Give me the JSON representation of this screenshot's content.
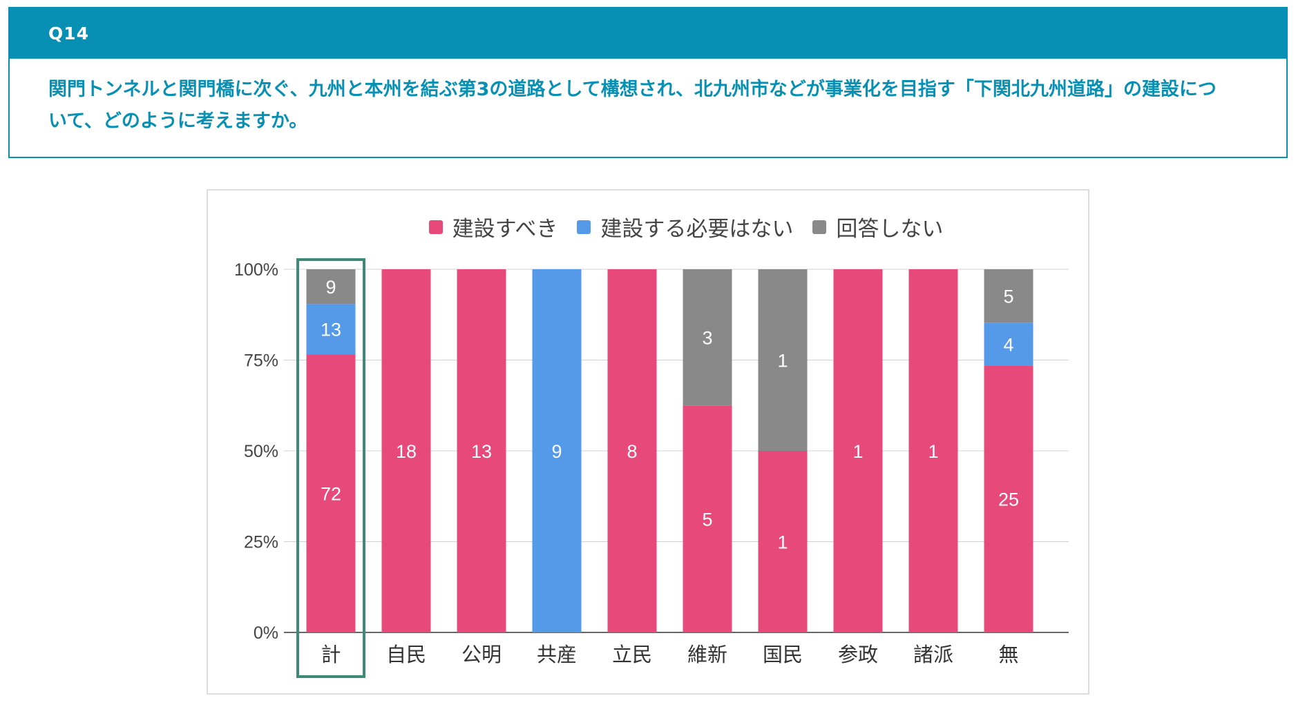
{
  "question": {
    "id": "Q14",
    "text": "関門トンネルと関門橋に次ぐ、九州と本州を結ぶ第3の道路として構想され、北九州市などが事業化を目指す「下関北九州道路」の建設について、どのように考えますか。"
  },
  "colors": {
    "accent": "#0890b4",
    "highlight_border": "#3e8a78",
    "series": [
      "#e8497b",
      "#5599e9",
      "#898989"
    ]
  },
  "chart_data": {
    "type": "bar",
    "stacked": true,
    "normalized": true,
    "title": "",
    "xlabel": "",
    "ylabel": "",
    "ylim": [
      0,
      100
    ],
    "yticks": [
      "0%",
      "25%",
      "50%",
      "75%",
      "100%"
    ],
    "categories": [
      "計",
      "自民",
      "公明",
      "共産",
      "立民",
      "維新",
      "国民",
      "参政",
      "諸派",
      "無"
    ],
    "highlighted_category": "計",
    "legend_position": "top",
    "series": [
      {
        "name": "建設すべき",
        "values": [
          72,
          18,
          13,
          0,
          8,
          5,
          1,
          1,
          1,
          25
        ]
      },
      {
        "name": "建設する必要はない",
        "values": [
          13,
          0,
          0,
          9,
          0,
          0,
          0,
          0,
          0,
          4
        ]
      },
      {
        "name": "回答しない",
        "values": [
          9,
          0,
          0,
          0,
          0,
          3,
          1,
          0,
          0,
          5
        ]
      }
    ]
  }
}
